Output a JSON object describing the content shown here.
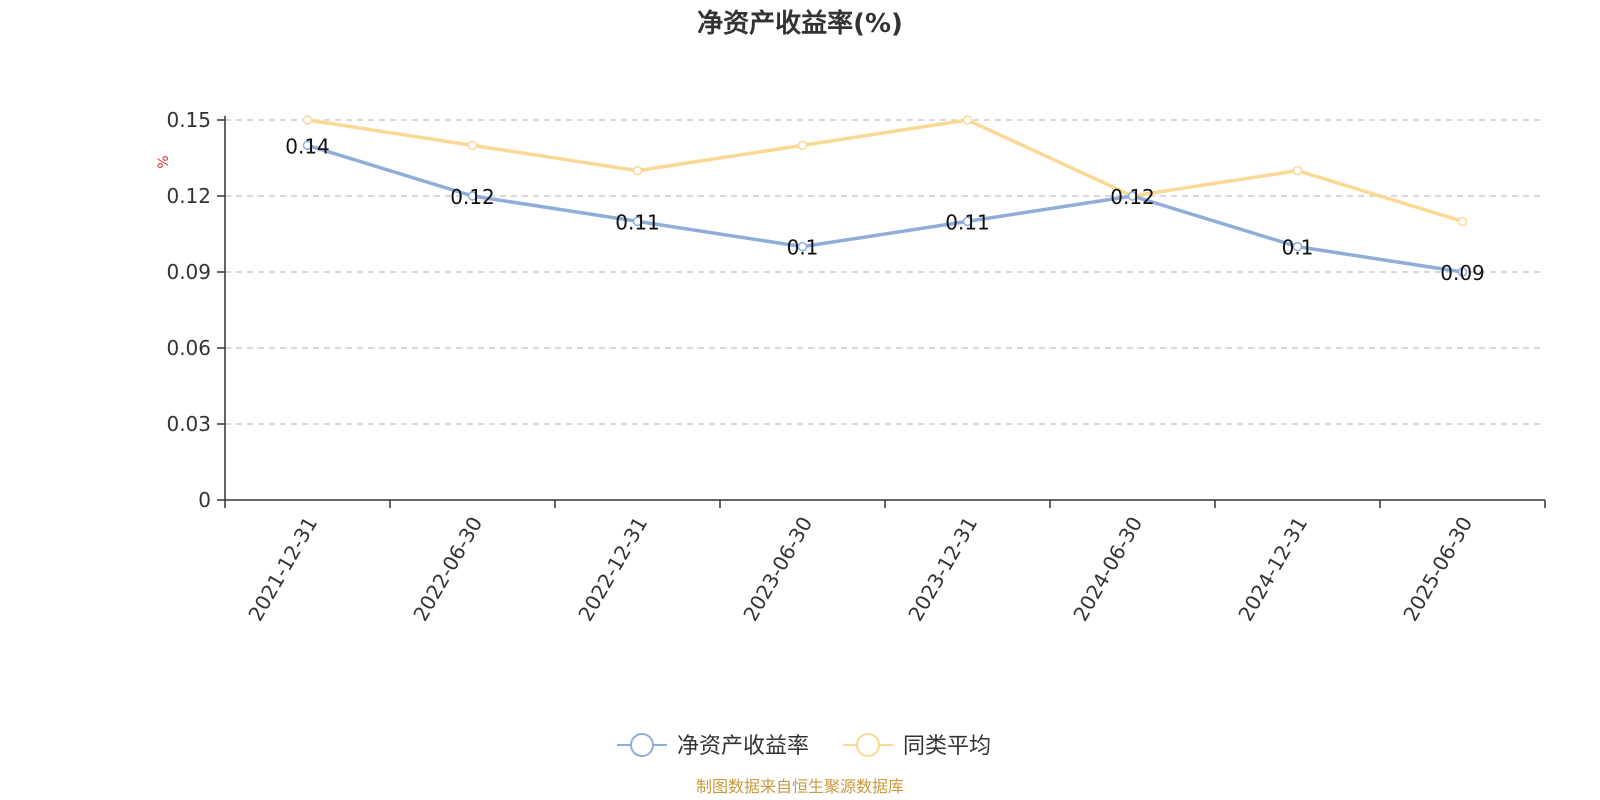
{
  "chart_data": {
    "type": "line",
    "title": "净资产收益率(%)",
    "ylabel": "%",
    "xlabel": "",
    "categories": [
      "2021-12-31",
      "2022-06-30",
      "2022-12-31",
      "2023-06-30",
      "2023-12-31",
      "2024-06-30",
      "2024-12-31",
      "2025-06-30"
    ],
    "y_ticks": [
      "0",
      "0.03",
      "0.06",
      "0.09",
      "0.12",
      "0.15"
    ],
    "y_tick_values": [
      0,
      0.03,
      0.06,
      0.09,
      0.12,
      0.15
    ],
    "ylim": [
      0,
      0.15
    ],
    "grid": true,
    "legend_position": "bottom",
    "series": [
      {
        "name": "净资产收益率",
        "color": "#8fadd9",
        "values": [
          0.14,
          0.12,
          0.11,
          0.1,
          0.11,
          0.12,
          0.1,
          0.09
        ],
        "labels": [
          "0.14",
          "0.12",
          "0.11",
          "0.1",
          "0.11",
          "0.12",
          "0.1",
          "0.09"
        ],
        "show_labels": true
      },
      {
        "name": "同类平均",
        "color": "#fbd893",
        "values": [
          0.15,
          0.14,
          0.13,
          0.14,
          0.15,
          0.12,
          0.13,
          0.11
        ],
        "show_labels": false
      }
    ],
    "ylabel_color": "#e0323a"
  },
  "footer": {
    "source": "制图数据来自恒生聚源数据库",
    "source_color": "#c99a3d"
  }
}
